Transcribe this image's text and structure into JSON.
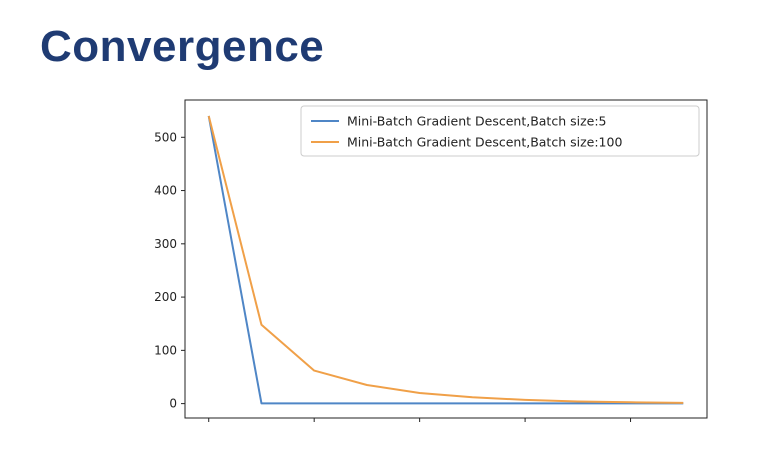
{
  "slide": {
    "title": "Convergence"
  },
  "colors": {
    "title": "#1f3b73",
    "series1": "#4f86c6",
    "series2": "#f0a048"
  },
  "chart_data": {
    "type": "line",
    "title": "",
    "xlabel": "",
    "ylabel": "",
    "xlim": [
      -0.45,
      9.45
    ],
    "ylim": [
      -27,
      570
    ],
    "xticks": [
      0,
      2,
      4,
      6,
      8
    ],
    "yticks": [
      0,
      100,
      200,
      300,
      400,
      500
    ],
    "legend_position": "top-right",
    "grid": false,
    "x": [
      0,
      1,
      2,
      3,
      4,
      5,
      6,
      7,
      8,
      9
    ],
    "series": [
      {
        "name": "Mini-Batch Gradient Descent,Batch size:5",
        "color": "#4f86c6",
        "values": [
          540,
          0.5,
          0.5,
          0.5,
          0.5,
          0.5,
          0.5,
          0.5,
          0.5,
          0.5
        ]
      },
      {
        "name": "Mini-Batch Gradient Descent,Batch size:100",
        "color": "#f0a048",
        "values": [
          540,
          148,
          62,
          35,
          20,
          12,
          7,
          4,
          2.5,
          1.5
        ]
      }
    ]
  }
}
